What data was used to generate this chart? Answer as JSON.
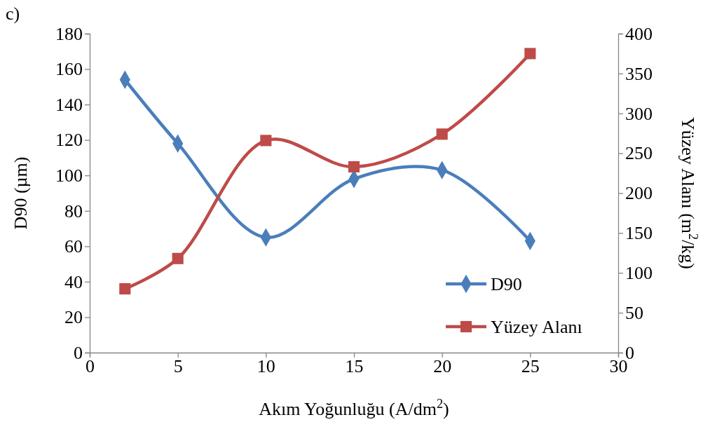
{
  "chart_data": {
    "type": "line",
    "xlabel": "Akım Yoğunluğu (A/dm$^{2}$)",
    "ylabel": "D90 (µm)",
    "y2label": "Yüzey Alanı (m$^{2}$/kg)",
    "annotations": [
      "c)"
    ],
    "x": [
      2,
      5,
      10,
      15,
      20,
      25
    ],
    "series": [
      {
        "name": "D90",
        "color": "#4a7ebb",
        "marker": "diamond",
        "values": [
          154,
          118,
          65,
          98,
          103,
          63
        ]
      },
      {
        "name": "Yüzey Alanı",
        "color": "#be4b48",
        "marker": "square",
        "axis": "y2",
        "values": [
          80,
          118,
          266,
          233,
          274,
          375
        ]
      }
    ],
    "xlim": [
      0,
      30
    ],
    "xticks": [
      0,
      5,
      10,
      15,
      20,
      25,
      30
    ],
    "ylim": [
      0,
      180
    ],
    "yticks": [
      0,
      20,
      40,
      60,
      80,
      100,
      120,
      140,
      160,
      180
    ],
    "y2lim": [
      0,
      400
    ],
    "y2ticks": [
      0,
      50,
      100,
      150,
      200,
      250,
      300,
      350,
      400
    ],
    "grid": false,
    "legend": "bottom right",
    "line_style": "solid"
  }
}
